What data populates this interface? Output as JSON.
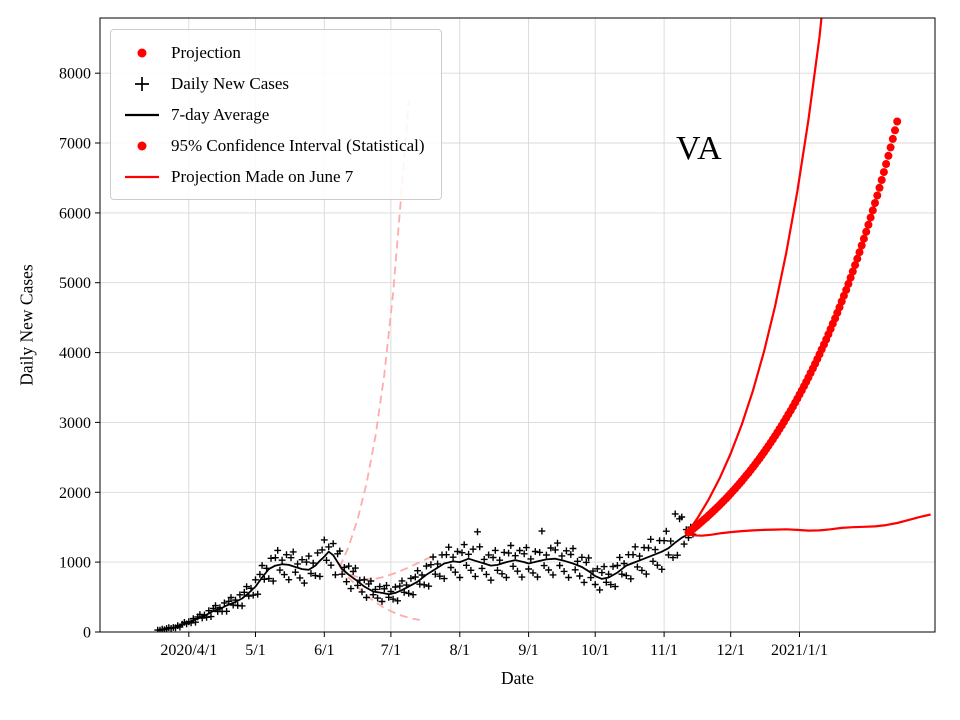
{
  "colors": {
    "projection": "#ff0000",
    "observed": "#000000",
    "faded_projection": "#ffabab",
    "grid": "#d9d9d9",
    "frame": "#000000"
  },
  "chart_data": {
    "type": "mixed",
    "annotation": "VA",
    "title": "",
    "xlabel": "Date",
    "ylabel": "Daily New Cases",
    "x_unit": "days since 2020-03-01",
    "xlim": [
      -9,
      367
    ],
    "ylim": [
      0,
      8790
    ],
    "grid": true,
    "x_ticks": [
      {
        "day": 31,
        "label": "2020/4/1"
      },
      {
        "day": 61,
        "label": "5/1"
      },
      {
        "day": 92,
        "label": "6/1"
      },
      {
        "day": 122,
        "label": "7/1"
      },
      {
        "day": 153,
        "label": "8/1"
      },
      {
        "day": 184,
        "label": "9/1"
      },
      {
        "day": 214,
        "label": "10/1"
      },
      {
        "day": 245,
        "label": "11/1"
      },
      {
        "day": 275,
        "label": "12/1"
      },
      {
        "day": 306,
        "label": "2021/1/1"
      }
    ],
    "y_ticks": [
      0,
      1000,
      2000,
      3000,
      4000,
      5000,
      6000,
      7000,
      8000
    ],
    "legend": [
      {
        "marker": "red-dot",
        "label": "Projection"
      },
      {
        "marker": "black-plus",
        "label": "Daily New Cases"
      },
      {
        "marker": "black-line",
        "label": "7-day Average"
      },
      {
        "marker": "red-dot",
        "label": "95% Confidence Interval (Statistical)"
      },
      {
        "marker": "red-line",
        "label": "Projection Made on June 7"
      }
    ],
    "series": [
      {
        "name": "projection-june7-upper",
        "kind": "line",
        "dash": true,
        "color": "#ffabab",
        "width": 1.8,
        "points": [
          [
            99,
            930
          ],
          [
            103,
            1225
          ],
          [
            107,
            1613
          ],
          [
            111,
            2124
          ],
          [
            115,
            2797
          ],
          [
            119,
            3684
          ],
          [
            123,
            4851
          ],
          [
            127,
            6389
          ],
          [
            130,
            7600
          ]
        ]
      },
      {
        "name": "projection-june7-middle",
        "kind": "line",
        "dash": true,
        "color": "#ffabab",
        "width": 1.8,
        "points": [
          [
            99,
            930
          ],
          [
            104,
            820
          ],
          [
            109,
            765
          ],
          [
            114,
            755
          ],
          [
            119,
            790
          ],
          [
            124,
            845
          ],
          [
            129,
            910
          ],
          [
            134,
            985
          ],
          [
            139,
            1060
          ],
          [
            142,
            1100
          ]
        ]
      },
      {
        "name": "projection-june7-lower",
        "kind": "line",
        "dash": true,
        "color": "#ffabab",
        "width": 1.8,
        "points": [
          [
            99,
            930
          ],
          [
            103,
            780
          ],
          [
            107,
            645
          ],
          [
            111,
            525
          ],
          [
            115,
            425
          ],
          [
            119,
            345
          ],
          [
            123,
            283
          ],
          [
            127,
            232
          ],
          [
            131,
            196
          ],
          [
            135,
            172
          ]
        ]
      },
      {
        "name": "daily-new-cases",
        "kind": "scatter_plus",
        "color": "#000000",
        "start_day": 17,
        "step": 1,
        "values": [
          27,
          26,
          40,
          31,
          50,
          61,
          51,
          64,
          60,
          92,
          70,
          112,
          138,
          117,
          148,
          130,
          192,
          140,
          216,
          250,
          200,
          244,
          211,
          305,
          221,
          336,
          378,
          294,
          350,
          295,
          417,
          296,
          440,
          494,
          385,
          456,
          380,
          532,
          374,
          568,
          650,
          515,
          625,
          527,
          748,
          541,
          825,
          952,
          754,
          912,
          765,
          1055,
          728,
          1064,
          1168,
          886,
          1028,
          822,
          1107,
          749,
          1064,
          1147,
          856,
          975,
          774,
          1035,
          700,
          1000,
          1086,
          837,
          986,
          808,
          1133,
          796,
          1176,
          1318,
          1026,
          1219,
          956,
          1265,
          819,
          1120,
          1159,
          828,
          925,
          720,
          943,
          622,
          866,
          915,
          667,
          742,
          574,
          748,
          494,
          689,
          730,
          534,
          610,
          485,
          650,
          437,
          619,
          667,
          497,
          580,
          470,
          644,
          447,
          657,
          732,
          568,
          671,
          553,
          768,
          534,
          787,
          878,
          685,
          816,
          676,
          943,
          655,
          963,
          1074,
          828,
          975,
          799,
          1104,
          764,
          1107,
          1214,
          923,
          1071,
          856,
          1153,
          780,
          1135,
          1251,
          955,
          1113,
          884,
          1185,
          796,
          1435,
          1220,
          911,
          1039,
          825,
          1104,
          741,
          1067,
          1168,
          883,
          1028,
          833,
          1139,
          780,
          1129,
          1238,
          941,
          1092,
          870,
          1167,
          786,
          1120,
          1208,
          902,
          1047,
          846,
          1153,
          788,
          1140,
          1445,
          950,
          1102,
          887,
          1202,
          817,
          1176,
          1272,
          952,
          1090,
          867,
          1162,
          780,
          1109,
          1196,
          891,
          1012,
          802,
          1070,
          710,
          997,
          1061,
          779,
          872,
          680,
          905,
          603,
          851,
          936,
          711,
          827,
          678,
          937,
          650,
          952,
          1068,
          828,
          981,
          808,
          1107,
          761,
          1107,
          1220,
          932,
          1087,
          882,
          1208,
          829,
          1204,
          1327,
          1012,
          1180,
          956,
          1309,
          897,
          1307,
          1443,
          1104,
          1301,
          1065,
          1690,
          1100,
          1620,
          1647,
          1258,
          1466,
          1350,
          1500,
          1400
        ]
      },
      {
        "name": "seven-day-average",
        "kind": "line",
        "color": "#000000",
        "width": 1.8,
        "points": [
          [
            17,
            25
          ],
          [
            20,
            40
          ],
          [
            24,
            60
          ],
          [
            28,
            100
          ],
          [
            31,
            140
          ],
          [
            34,
            180
          ],
          [
            38,
            230
          ],
          [
            42,
            300
          ],
          [
            45,
            330
          ],
          [
            48,
            380
          ],
          [
            52,
            430
          ],
          [
            55,
            480
          ],
          [
            58,
            560
          ],
          [
            61,
            650
          ],
          [
            64,
            780
          ],
          [
            67,
            900
          ],
          [
            70,
            950
          ],
          [
            73,
            970
          ],
          [
            76,
            960
          ],
          [
            79,
            930
          ],
          [
            82,
            900
          ],
          [
            85,
            890
          ],
          [
            88,
            950
          ],
          [
            90,
            1020
          ],
          [
            92,
            1080
          ],
          [
            94,
            1150
          ],
          [
            96,
            1100
          ],
          [
            98,
            1000
          ],
          [
            100,
            900
          ],
          [
            103,
            820
          ],
          [
            106,
            750
          ],
          [
            110,
            650
          ],
          [
            114,
            580
          ],
          [
            118,
            560
          ],
          [
            121,
            540
          ],
          [
            124,
            560
          ],
          [
            127,
            600
          ],
          [
            130,
            650
          ],
          [
            134,
            720
          ],
          [
            138,
            820
          ],
          [
            142,
            900
          ],
          [
            146,
            980
          ],
          [
            150,
            1010
          ],
          [
            153,
            1000
          ],
          [
            157,
            1050
          ],
          [
            160,
            1020
          ],
          [
            164,
            980
          ],
          [
            167,
            950
          ],
          [
            170,
            960
          ],
          [
            174,
            1000
          ],
          [
            178,
            1030
          ],
          [
            182,
            1000
          ],
          [
            184,
            980
          ],
          [
            188,
            1010
          ],
          [
            192,
            1040
          ],
          [
            196,
            1050
          ],
          [
            200,
            1020
          ],
          [
            204,
            980
          ],
          [
            208,
            930
          ],
          [
            211,
            870
          ],
          [
            214,
            800
          ],
          [
            217,
            760
          ],
          [
            220,
            780
          ],
          [
            224,
            850
          ],
          [
            228,
            950
          ],
          [
            232,
            1000
          ],
          [
            236,
            1050
          ],
          [
            240,
            1100
          ],
          [
            244,
            1150
          ],
          [
            247,
            1200
          ],
          [
            250,
            1280
          ],
          [
            253,
            1350
          ],
          [
            256,
            1400
          ],
          [
            258,
            1420
          ]
        ]
      },
      {
        "name": "ci-upper",
        "kind": "line",
        "color": "#ff0000",
        "width": 2.2,
        "points": [
          [
            255,
            1400
          ],
          [
            260,
            1628
          ],
          [
            265,
            1892
          ],
          [
            270,
            2199
          ],
          [
            275,
            2556
          ],
          [
            280,
            2971
          ],
          [
            285,
            3453
          ],
          [
            290,
            4014
          ],
          [
            295,
            4666
          ],
          [
            300,
            5424
          ],
          [
            305,
            6305
          ],
          [
            310,
            7329
          ],
          [
            315,
            8519
          ],
          [
            319,
            9750
          ]
        ]
      },
      {
        "name": "ci-lower",
        "kind": "line",
        "color": "#ff0000",
        "width": 2.2,
        "points": [
          [
            255,
            1400
          ],
          [
            258,
            1385
          ],
          [
            262,
            1378
          ],
          [
            266,
            1392
          ],
          [
            270,
            1412
          ],
          [
            275,
            1430
          ],
          [
            280,
            1444
          ],
          [
            285,
            1455
          ],
          [
            290,
            1462
          ],
          [
            295,
            1466
          ],
          [
            300,
            1470
          ],
          [
            305,
            1462
          ],
          [
            310,
            1452
          ],
          [
            315,
            1455
          ],
          [
            320,
            1470
          ],
          [
            325,
            1490
          ],
          [
            330,
            1500
          ],
          [
            335,
            1506
          ],
          [
            340,
            1512
          ],
          [
            345,
            1530
          ],
          [
            350,
            1560
          ],
          [
            355,
            1602
          ],
          [
            360,
            1645
          ],
          [
            365,
            1682
          ]
        ]
      },
      {
        "name": "projection",
        "kind": "scatter_dot",
        "color": "#ff0000",
        "radius": 4,
        "start_day": 256,
        "step": 1,
        "values": [
          1425,
          1450,
          1475,
          1501,
          1527,
          1554,
          1581,
          1609,
          1637,
          1666,
          1695,
          1725,
          1755,
          1786,
          1817,
          1849,
          1881,
          1914,
          1948,
          1982,
          2017,
          2052,
          2088,
          2125,
          2162,
          2200,
          2239,
          2278,
          2318,
          2359,
          2400,
          2442,
          2485,
          2529,
          2573,
          2618,
          2664,
          2711,
          2758,
          2807,
          2856,
          2906,
          2957,
          3009,
          3062,
          3116,
          3170,
          3226,
          3283,
          3340,
          3399,
          3459,
          3519,
          3581,
          3644,
          3708,
          3773,
          3839,
          3907,
          3975,
          4045,
          4116,
          4188,
          4262,
          4337,
          4413,
          4490,
          4569,
          4649,
          4731,
          4814,
          4898,
          4984,
          5072,
          5161,
          5252,
          5344,
          5437,
          5533,
          5630,
          5729,
          5829,
          5932,
          6036,
          6142,
          6249,
          6359,
          6471,
          6584,
          6700,
          6817,
          6937,
          7059,
          7183,
          7309
        ]
      }
    ]
  }
}
